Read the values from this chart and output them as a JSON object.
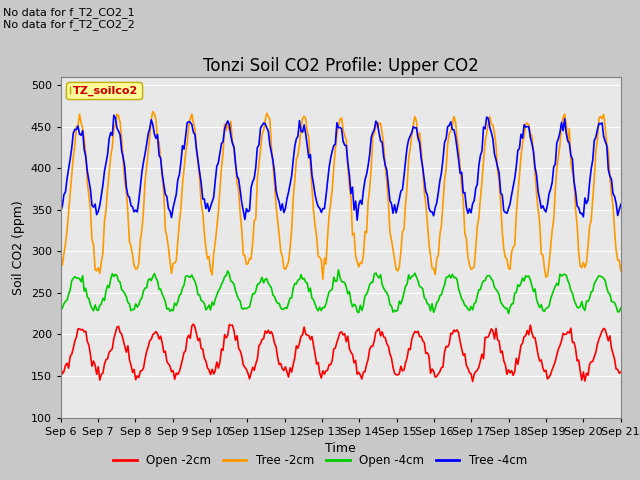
{
  "title": "Tonzi Soil CO2 Profile: Upper CO2",
  "xlabel": "Time",
  "ylabel": "Soil CO2 (ppm)",
  "ylim": [
    100,
    510
  ],
  "yticks": [
    100,
    150,
    200,
    250,
    300,
    350,
    400,
    450,
    500
  ],
  "bg_color": "#e8e8e8",
  "fig_color": "#c8c8c8",
  "text_top_left": [
    "No data for f_T2_CO2_1",
    "No data for f_T2_CO2_2"
  ],
  "legend_box_label": "TZ_soilco2",
  "legend_box_color": "#ffff99",
  "legend_box_border": "#bbaa00",
  "legend_box_text_color": "#cc0000",
  "series": [
    {
      "label": "Open -2cm",
      "color": "#ff0000",
      "base": 178,
      "amplitude": 27,
      "phase": -0.3
    },
    {
      "label": "Tree -2cm",
      "color": "#ff9900",
      "base": 370,
      "amplitude": 90,
      "phase": -0.25
    },
    {
      "label": "Open -4cm",
      "color": "#00cc00",
      "base": 250,
      "amplitude": 20,
      "phase": -0.2
    },
    {
      "label": "Tree -4cm",
      "color": "#0000ff",
      "base": 400,
      "amplitude": 52,
      "phase": -0.2
    }
  ],
  "xticklabels": [
    "Sep 6",
    "Sep 7",
    "Sep 8",
    "Sep 9",
    "Sep 10",
    "Sep 11",
    "Sep 12",
    "Sep 13",
    "Sep 14",
    "Sep 15",
    "Sep 16",
    "Sep 17",
    "Sep 18",
    "Sep 19",
    "Sep 20",
    "Sep 21"
  ],
  "linewidth": 1.2,
  "title_fontsize": 12,
  "axis_label_fontsize": 9,
  "tick_fontsize": 8
}
